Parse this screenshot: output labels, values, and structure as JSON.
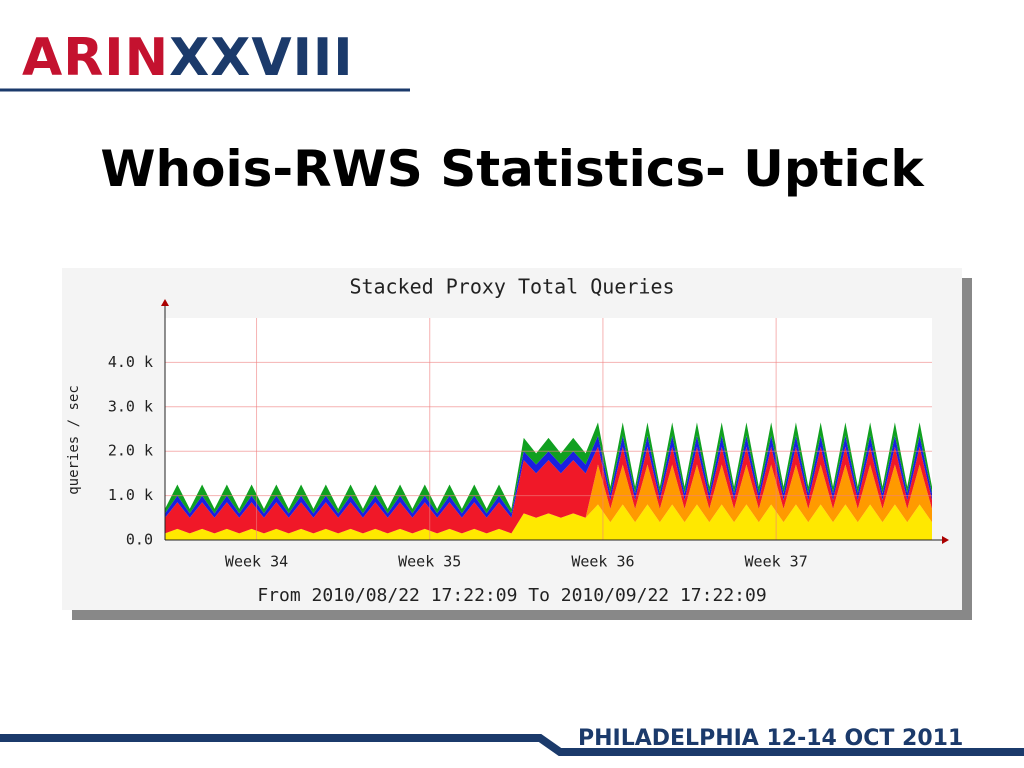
{
  "header": {
    "logo_red": "ARIN",
    "logo_blue": "XXVIII",
    "title": "Whois-RWS Statistics- Uptick"
  },
  "chart_data": {
    "type": "stacked-area",
    "title": "Stacked Proxy Total Queries",
    "y_label": "queries / sec",
    "footer": "From 2010/08/22 17:22:09 To 2010/09/22 17:22:09",
    "x": [
      0,
      0.5,
      1,
      1.5,
      2,
      2.5,
      3,
      3.5,
      4,
      4.5,
      5,
      5.5,
      6,
      6.5,
      7,
      7.5,
      8,
      8.5,
      9,
      9.5,
      10,
      10.5,
      11,
      11.5,
      12,
      12.5,
      13,
      13.5,
      14,
      14.5,
      15,
      15.5,
      16,
      16.5,
      17,
      17.5,
      18,
      18.5,
      19,
      19.5,
      20,
      20.5,
      21,
      21.5,
      22,
      22.5,
      23,
      23.5,
      24,
      24.5,
      25,
      25.5,
      26,
      26.5,
      27,
      27.5,
      28,
      28.5,
      29,
      29.5,
      30,
      30.5,
      31
    ],
    "xlim": [
      0,
      31
    ],
    "xticks": [
      {
        "value": 3.7,
        "label": "Week 34"
      },
      {
        "value": 10.7,
        "label": "Week 35"
      },
      {
        "value": 17.7,
        "label": "Week 36"
      },
      {
        "value": 24.7,
        "label": "Week 37"
      }
    ],
    "ylim": [
      0,
      5000
    ],
    "yticks": [
      {
        "value": 0,
        "label": "0.0"
      },
      {
        "value": 1000,
        "label": "1.0 k"
      },
      {
        "value": 2000,
        "label": "2.0 k"
      },
      {
        "value": 3000,
        "label": "3.0 k"
      },
      {
        "value": 4000,
        "label": "4.0 k"
      }
    ],
    "grid": true,
    "series": [
      {
        "color": "#ffe800",
        "values": [
          150,
          250,
          150,
          250,
          150,
          250,
          150,
          250,
          150,
          250,
          150,
          250,
          150,
          250,
          150,
          250,
          150,
          250,
          150,
          250,
          150,
          250,
          150,
          250,
          150,
          250,
          150,
          250,
          150,
          600,
          500,
          600,
          500,
          600,
          500,
          800,
          400,
          800,
          400,
          800,
          400,
          800,
          400,
          800,
          400,
          800,
          400,
          800,
          400,
          800,
          400,
          800,
          400,
          800,
          400,
          800,
          400,
          800,
          400,
          800,
          400,
          800,
          400
        ]
      },
      {
        "color": "#ff9a00",
        "values": [
          0,
          0,
          0,
          0,
          0,
          0,
          0,
          0,
          0,
          0,
          0,
          0,
          0,
          0,
          0,
          0,
          0,
          0,
          0,
          0,
          0,
          0,
          0,
          0,
          0,
          0,
          0,
          0,
          0,
          0,
          0,
          0,
          0,
          0,
          0,
          900,
          300,
          900,
          300,
          900,
          300,
          900,
          300,
          900,
          300,
          900,
          300,
          900,
          300,
          900,
          300,
          900,
          300,
          900,
          300,
          900,
          300,
          900,
          300,
          900,
          300,
          900,
          300
        ]
      },
      {
        "color": "#f01828",
        "values": [
          350,
          600,
          350,
          600,
          350,
          600,
          350,
          600,
          350,
          600,
          350,
          600,
          350,
          600,
          350,
          600,
          350,
          600,
          350,
          600,
          350,
          600,
          350,
          600,
          350,
          600,
          350,
          600,
          350,
          1200,
          1000,
          1200,
          1000,
          1200,
          1000,
          400,
          200,
          400,
          200,
          400,
          200,
          400,
          200,
          400,
          200,
          400,
          200,
          400,
          200,
          400,
          200,
          400,
          200,
          400,
          200,
          400,
          200,
          400,
          200,
          400,
          200,
          400,
          200
        ]
      },
      {
        "color": "#1a20e0",
        "values": [
          100,
          150,
          100,
          150,
          100,
          150,
          100,
          150,
          100,
          150,
          100,
          150,
          100,
          150,
          100,
          150,
          100,
          150,
          100,
          150,
          100,
          150,
          100,
          150,
          100,
          150,
          100,
          150,
          100,
          200,
          200,
          200,
          200,
          200,
          200,
          250,
          150,
          250,
          150,
          250,
          150,
          250,
          150,
          250,
          150,
          250,
          150,
          250,
          150,
          250,
          150,
          250,
          150,
          250,
          150,
          250,
          150,
          250,
          150,
          250,
          150,
          250,
          150
        ]
      },
      {
        "color": "#10a020",
        "values": [
          100,
          250,
          100,
          250,
          100,
          250,
          100,
          250,
          100,
          250,
          100,
          250,
          100,
          250,
          100,
          250,
          100,
          250,
          100,
          250,
          100,
          250,
          100,
          250,
          100,
          250,
          100,
          250,
          100,
          300,
          250,
          300,
          250,
          300,
          250,
          300,
          150,
          300,
          150,
          300,
          150,
          300,
          150,
          300,
          150,
          300,
          150,
          300,
          150,
          300,
          150,
          300,
          150,
          300,
          150,
          300,
          150,
          300,
          150,
          300,
          150,
          300,
          150
        ]
      }
    ]
  },
  "footer": {
    "event": "PHILADELPHIA 12-14 OCT 2011"
  }
}
